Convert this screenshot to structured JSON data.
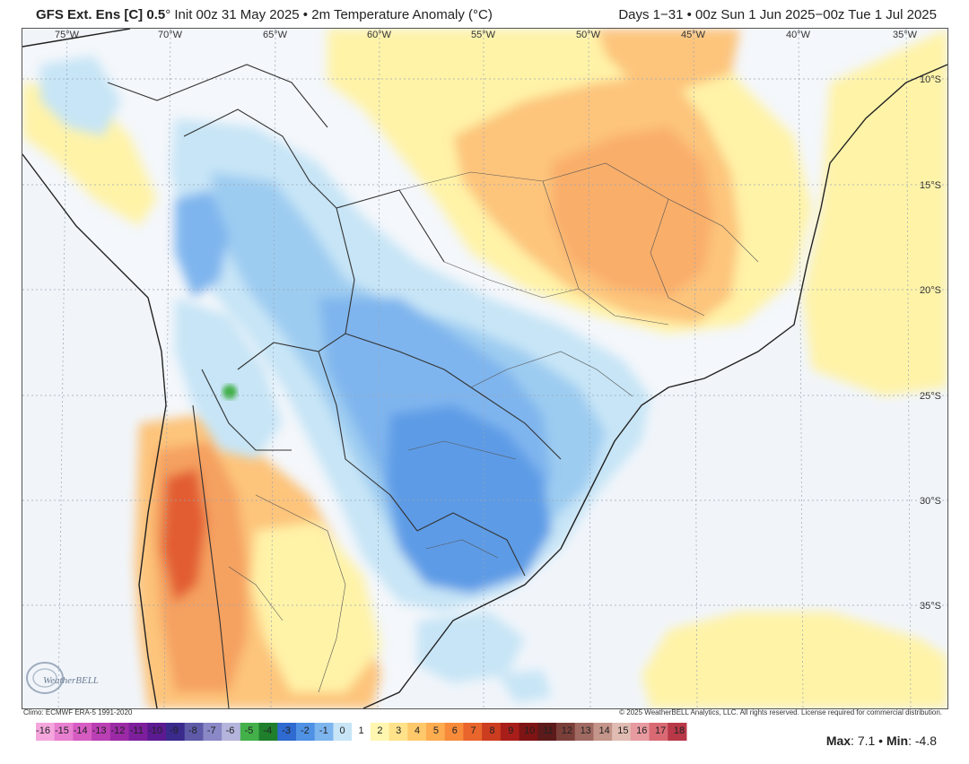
{
  "header": {
    "model": "GFS Ext. Ens [C] 0.5",
    "degree": "°",
    "init": " Init 00z 31 May 2025",
    "bullet": " • ",
    "field": "2m Temperature Anomaly (°C)",
    "period": "Days 1−31 • 00z Sun 1 Jun 2025−00z Tue 1 Jul 2025"
  },
  "map": {
    "longitudes": [
      "75°W",
      "70°W",
      "65°W",
      "60°W",
      "55°W",
      "50°W",
      "45°W",
      "40°W",
      "35°W"
    ],
    "latitudes": [
      "10°S",
      "15°S",
      "20°S",
      "25°S",
      "30°S",
      "35°S"
    ],
    "region": "South America",
    "logo_text": "WeatherBELL"
  },
  "footer": {
    "climo": "Climo: ECMWF ERA-5 1991-2020",
    "copyright": "© 2025 WeatherBELL Analytics, LLC. All rights reserved. License required for commercial distribution."
  },
  "colorbar": {
    "labels": [
      "-16",
      "-15",
      "-14",
      "-13",
      "-12",
      "-11",
      "-10",
      "-9",
      "-8",
      "-7",
      "-6",
      "-5",
      "-4",
      "-3",
      "-2",
      "-1",
      "0",
      "1",
      "2",
      "3",
      "4",
      "5",
      "6",
      "7",
      "8",
      "9",
      "10",
      "11",
      "12",
      "13",
      "14",
      "15",
      "16",
      "17",
      "18"
    ],
    "colors": [
      "#f5a6dd",
      "#e87fd0",
      "#d65cc2",
      "#bb3fb4",
      "#9c2aa6",
      "#7d1f9c",
      "#5c1a92",
      "#3a2a8c",
      "#5e5aa8",
      "#8a88c6",
      "#b4b4dc",
      "#43b04a",
      "#1f7f2c",
      "#2e6ad0",
      "#4f91e4",
      "#7db5ef",
      "#c7e5f6",
      "#ffffff",
      "#fff6b0",
      "#ffe28a",
      "#ffc86a",
      "#fdac50",
      "#f78b3a",
      "#e8652b",
      "#cc3d20",
      "#a81e1a",
      "#7e1414",
      "#5c1a1a",
      "#7b3f3a",
      "#a06a62",
      "#c4958a",
      "#e0bcb2",
      "#e79aa0",
      "#d96a74",
      "#b83848"
    ]
  },
  "stats": {
    "max_label": "Max",
    "max_value": ": 7.1",
    "min_label": "Min",
    "min_value": ": -4.8",
    "sep": " • "
  },
  "colors": {
    "ocean": "#f1f5fa",
    "cold_light": "#c7e5f6",
    "cold_mid": "#9dccf1",
    "cold_strong": "#5d9be6",
    "warm_light": "#fff3a8",
    "warm_mid": "#fdc47c",
    "warm_strong": "#f5a161",
    "hot": "#e25d32"
  }
}
